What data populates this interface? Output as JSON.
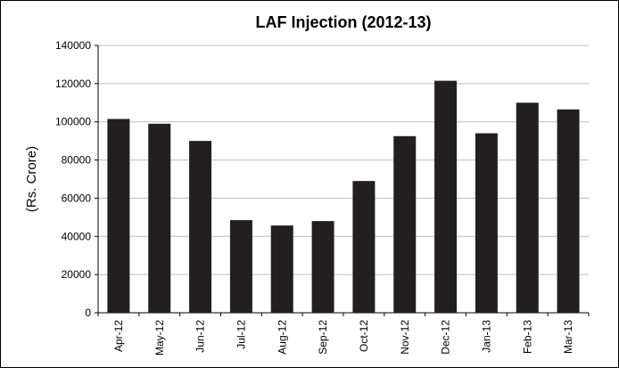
{
  "chart_data": {
    "type": "bar",
    "title": "LAF Injection (2012-13)",
    "y_label": "(Rs. Crore)",
    "categories": [
      "Apr-12",
      "May-12",
      "Jun-12",
      "Jul-12",
      "Aug-12",
      "Sep-12",
      "Oct-12",
      "Nov-12",
      "Dec-12",
      "Jan-13",
      "Feb-13",
      "Mar-13"
    ],
    "values": [
      101500,
      99000,
      90000,
      48500,
      45700,
      48000,
      69000,
      92500,
      121500,
      94000,
      110000,
      106500
    ],
    "color": "#231f20",
    "ylim": [
      0,
      140000
    ],
    "yticks": [
      0,
      20000,
      40000,
      60000,
      80000,
      100000,
      120000,
      140000
    ],
    "grid": true
  }
}
